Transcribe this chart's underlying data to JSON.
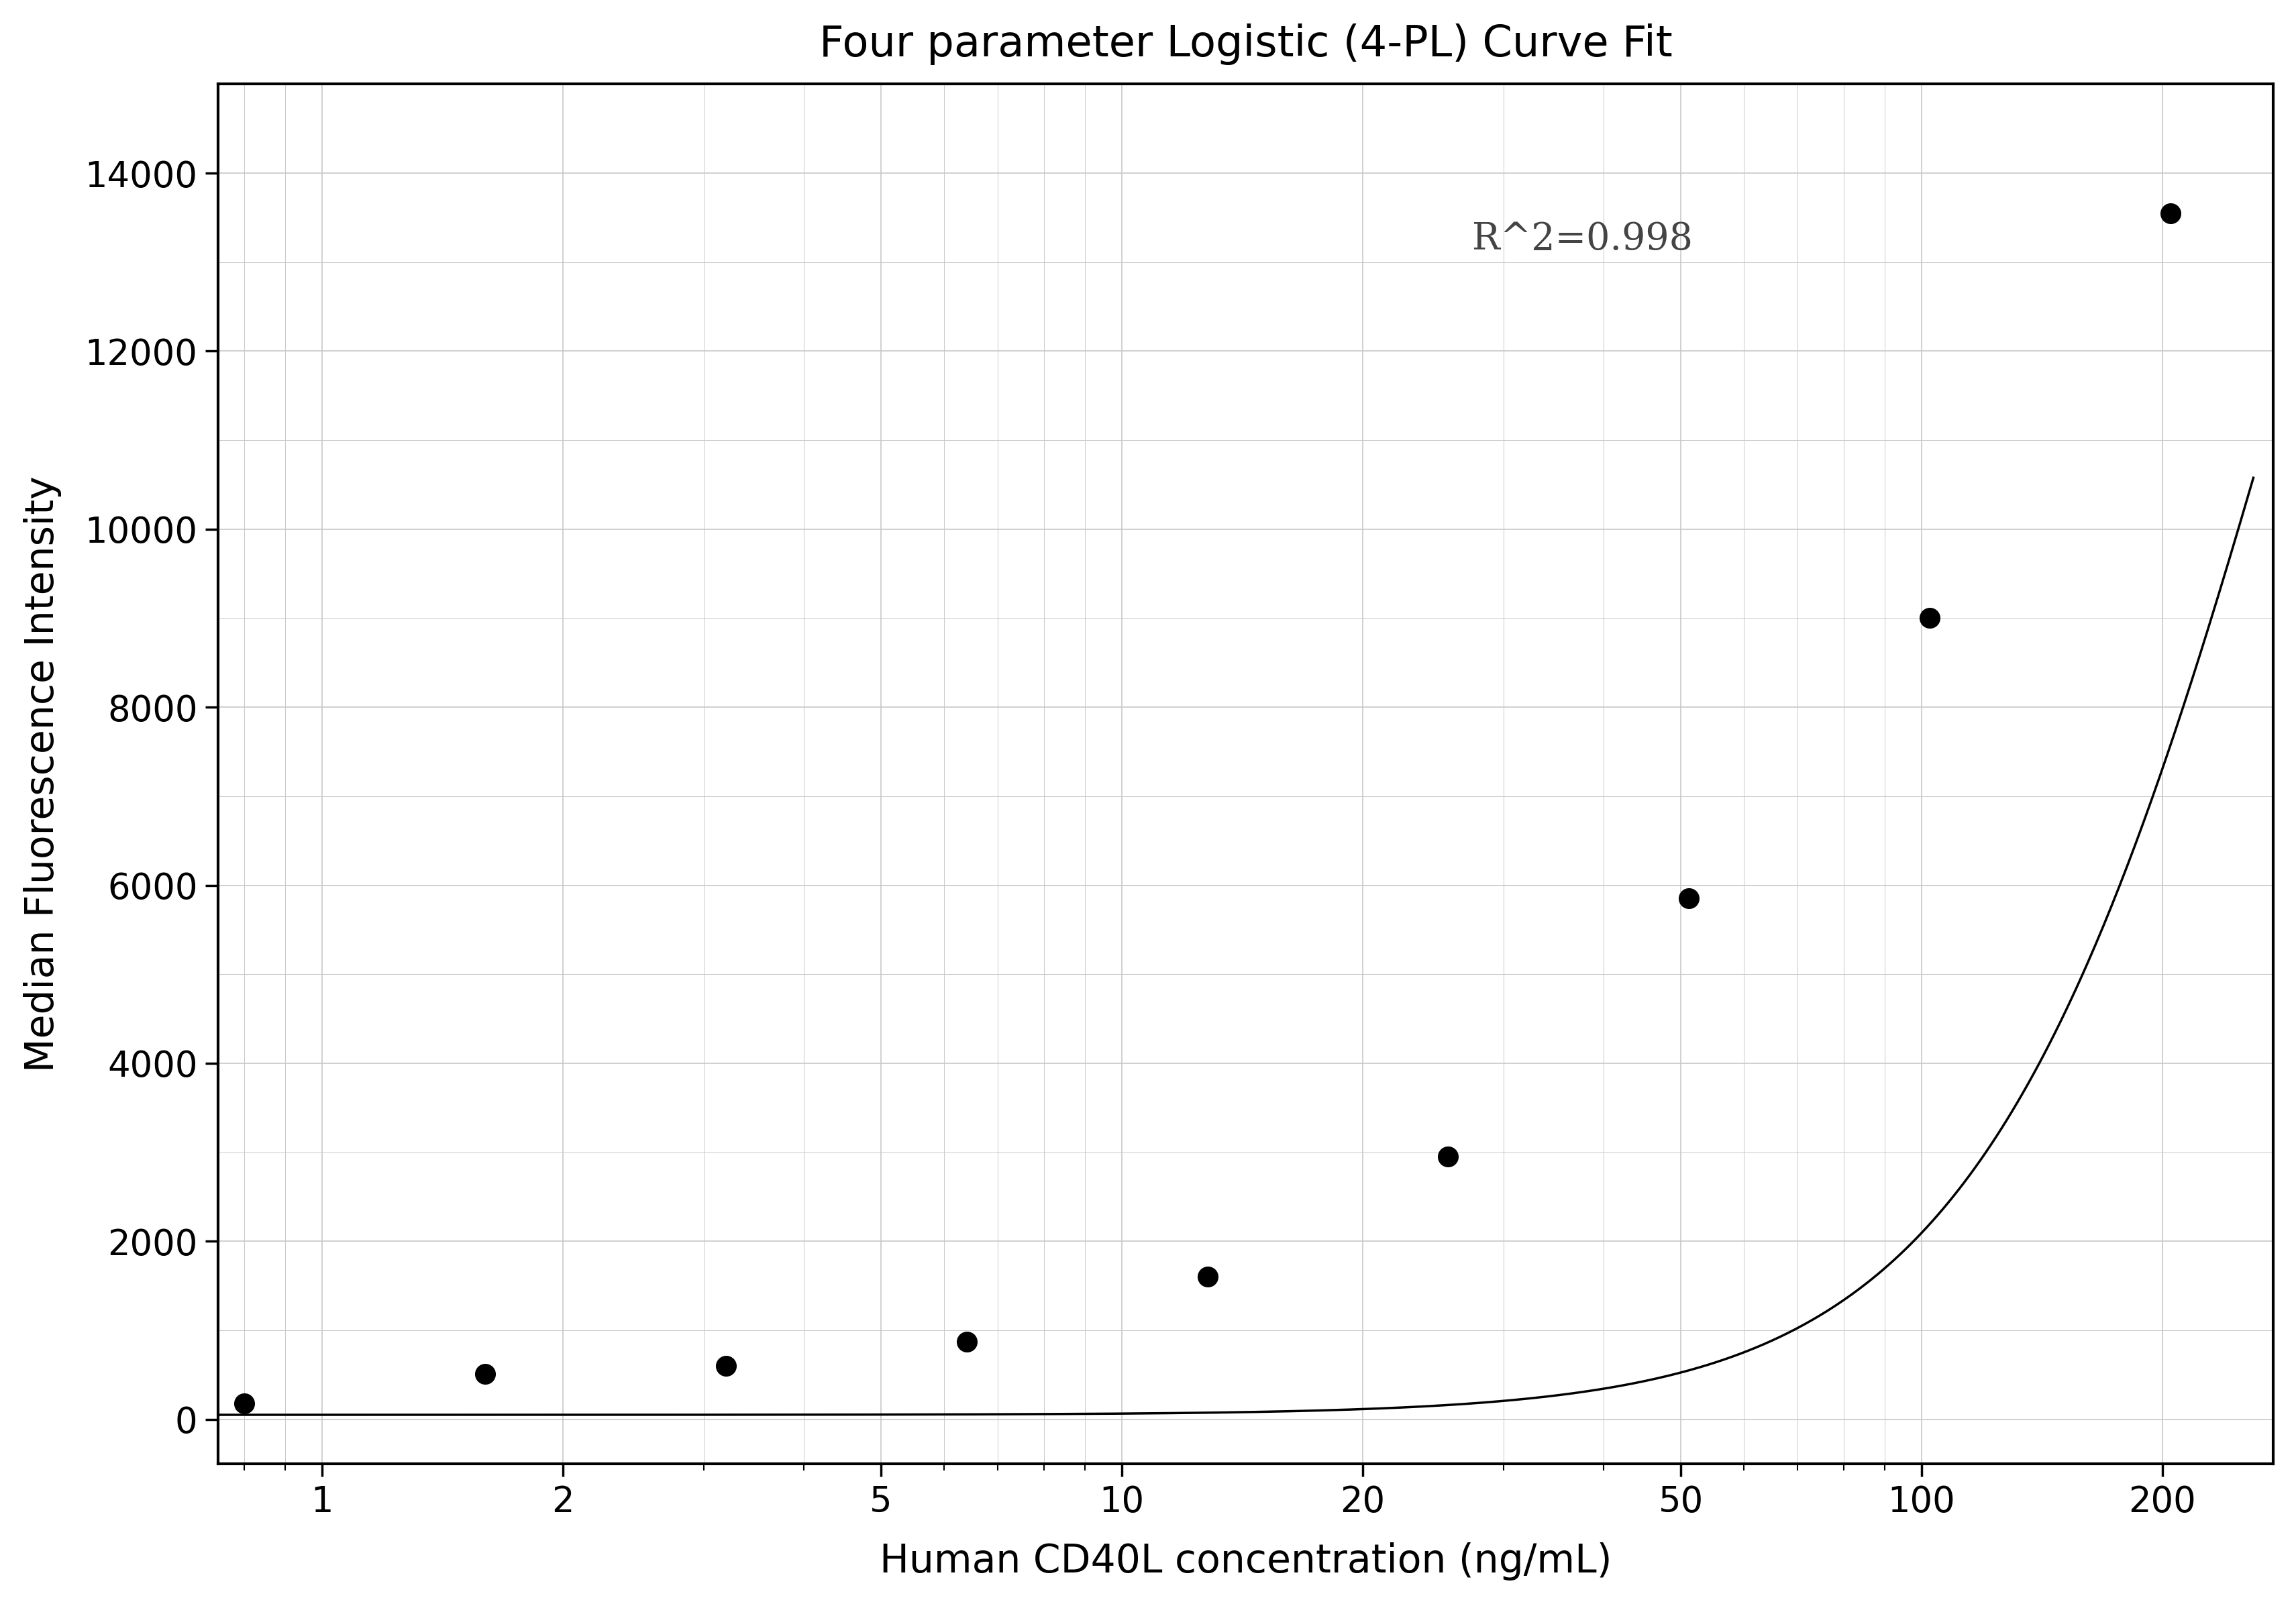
{
  "title": "Four parameter Logistic (4-PL) Curve Fit",
  "xlabel": "Human CD40L concentration (ng/mL)",
  "ylabel": "Median Fluorescence Intensity",
  "r_squared": "R^2=0.998",
  "scatter_x": [
    0.8,
    1.6,
    3.2,
    6.4,
    12.8,
    25.6,
    51.2,
    102.4,
    204.8
  ],
  "scatter_y": [
    175,
    510,
    600,
    870,
    1600,
    2950,
    5850,
    9000,
    13550
  ],
  "x_ticks": [
    1,
    2,
    5,
    10,
    20,
    50,
    100,
    200
  ],
  "ylim": [
    -500,
    15000
  ],
  "y_ticks": [
    0,
    2000,
    4000,
    6000,
    8000,
    10000,
    12000,
    14000
  ],
  "background_color": "#ffffff",
  "plot_bg_color": "#ffffff",
  "grid_color": "#c8c8c8",
  "line_color": "#000000",
  "scatter_color": "#000000",
  "title_fontsize": 46,
  "label_fontsize": 42,
  "tick_fontsize": 38,
  "annotation_fontsize": 40,
  "4pl_A": 50.0,
  "4pl_B": 2.2,
  "4pl_C": 300.0,
  "4pl_D": 25000.0
}
